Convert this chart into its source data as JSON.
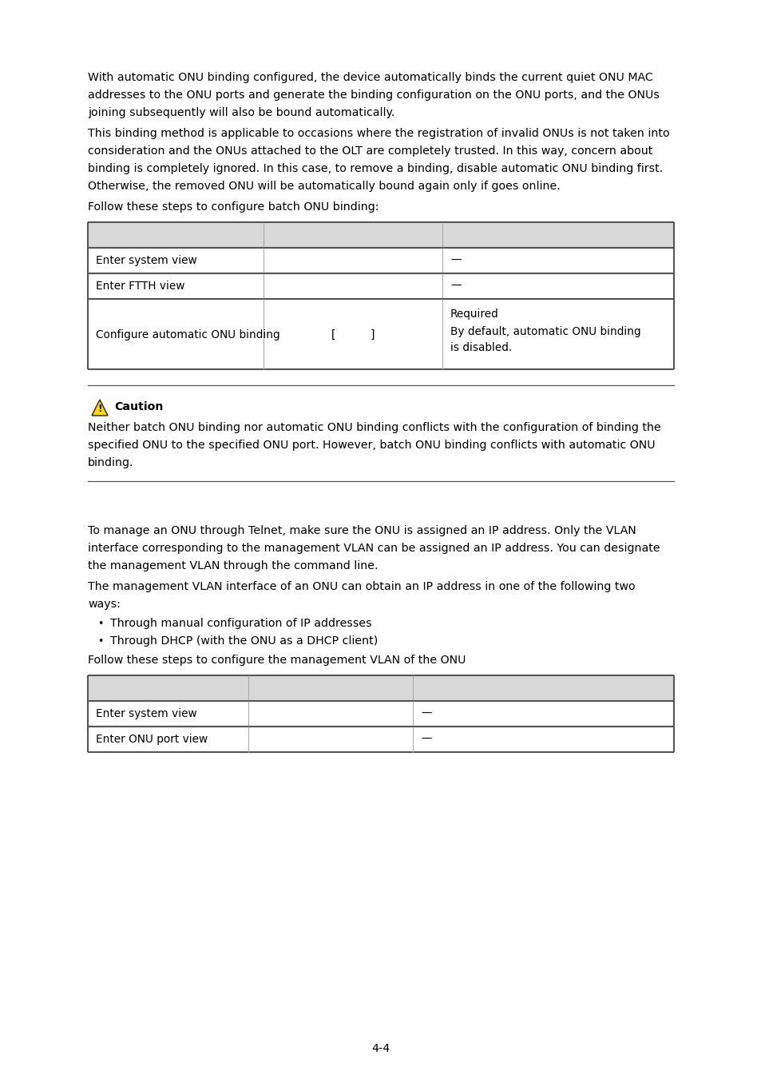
{
  "bg_color": "#ffffff",
  "text_color": "#000000",
  "para1_lines": [
    "With automatic ONU binding configured, the device automatically binds the current quiet ONU MAC",
    "addresses to the ONU ports and generate the binding configuration on the ONU ports, and the ONUs",
    "joining subsequently will also be bound automatically."
  ],
  "para2_lines": [
    "This binding method is applicable to occasions where the registration of invalid ONUs is not taken into",
    "consideration and the ONUs attached to the OLT are completely trusted. In this way, concern about",
    "binding is completely ignored. In this case, to remove a binding, disable automatic ONU binding first.",
    "Otherwise, the removed ONU will be automatically bound again only if goes online."
  ],
  "para3": "Follow these steps to configure batch ONU binding:",
  "caution_title": "Caution",
  "caution_lines": [
    "Neither batch ONU binding nor automatic ONU binding conflicts with the configuration of binding the",
    "specified ONU to the specified ONU port. However, batch ONU binding conflicts with automatic ONU",
    "binding."
  ],
  "para4_lines": [
    "To manage an ONU through Telnet, make sure the ONU is assigned an IP address. Only the VLAN",
    "interface corresponding to the management VLAN can be assigned an IP address. You can designate",
    "the management VLAN through the command line."
  ],
  "para5_lines": [
    "The management VLAN interface of an ONU can obtain an IP address in one of the following two",
    "ways:"
  ],
  "bullet1": "Through manual configuration of IP addresses",
  "bullet2": "Through DHCP (with the ONU as a DHCP client)",
  "para6": "Follow these steps to configure the management VLAN of the ONU",
  "page_number": "4-4",
  "table_header_bg": "#d9d9d9",
  "table_border_dark": "#555555",
  "table_border_light": "#aaaaaa",
  "caution_line_color": "#555555"
}
